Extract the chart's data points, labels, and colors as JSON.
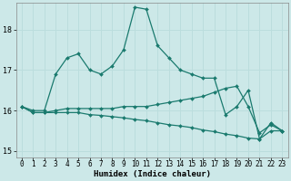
{
  "xlabel": "Humidex (Indice chaleur)",
  "background_color": "#cce8e8",
  "grid_color": "#bbdddd",
  "line_color": "#1a7a6e",
  "xlim": [
    -0.5,
    23.5
  ],
  "ylim": [
    14.85,
    18.65
  ],
  "yticks": [
    15,
    16,
    17,
    18
  ],
  "xtick_labels": [
    "0",
    "1",
    "2",
    "3",
    "4",
    "5",
    "6",
    "7",
    "8",
    "9",
    "10",
    "11",
    "12",
    "13",
    "14",
    "15",
    "16",
    "17",
    "18",
    "19",
    "20",
    "21",
    "22",
    "23"
  ],
  "series": [
    [
      16.1,
      16.0,
      16.0,
      16.9,
      17.3,
      17.4,
      17.0,
      16.9,
      17.1,
      17.5,
      18.55,
      18.5,
      17.6,
      17.3,
      17.0,
      16.9,
      16.8,
      16.8,
      15.9,
      16.1,
      16.5,
      15.3,
      15.7,
      15.5
    ],
    [
      16.1,
      15.95,
      15.95,
      16.0,
      16.05,
      16.05,
      16.05,
      16.05,
      16.05,
      16.1,
      16.1,
      16.1,
      16.15,
      16.2,
      16.25,
      16.3,
      16.35,
      16.45,
      16.55,
      16.6,
      16.1,
      15.45,
      15.65,
      15.5
    ],
    [
      16.1,
      15.95,
      15.95,
      15.95,
      15.95,
      15.95,
      15.9,
      15.88,
      15.85,
      15.82,
      15.78,
      15.75,
      15.7,
      15.65,
      15.62,
      15.58,
      15.52,
      15.48,
      15.42,
      15.38,
      15.32,
      15.3,
      15.5,
      15.5
    ]
  ],
  "marker_size": 2.0,
  "line_width": 0.9,
  "xlabel_fontsize": 6.5,
  "tick_fontsize": 5.5
}
